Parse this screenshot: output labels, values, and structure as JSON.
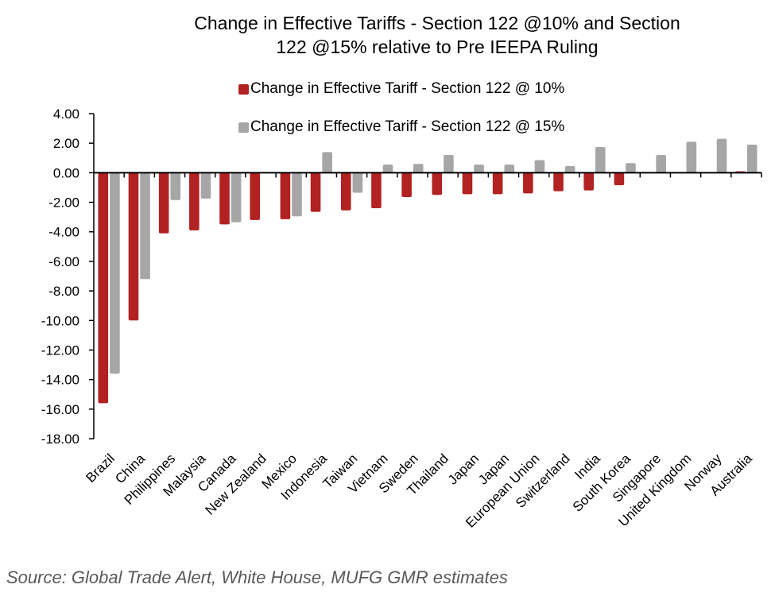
{
  "chart_data": {
    "type": "bar",
    "title": "Change in Effective Tariffs - Section 122 @10% and Section 122 @15% relative to Pre IEEPA Ruling",
    "title_lines": [
      "Change in Effective Tariffs - Section 122 @10% and Section",
      "122 @15% relative to Pre IEEPA Ruling"
    ],
    "xlabel": "",
    "ylabel": "",
    "ylim": [
      -18,
      4
    ],
    "yticks": [
      4,
      2,
      0,
      -2,
      -4,
      -6,
      -8,
      -10,
      -12,
      -14,
      -16,
      -18
    ],
    "ytick_labels": [
      "4.00",
      "2.00",
      "0.00",
      "-2.00",
      "-4.00",
      "-6.00",
      "-8.00",
      "-10.00",
      "-12.00",
      "-14.00",
      "-16.00",
      "-18.00"
    ],
    "grid": false,
    "legend_position": "top-center",
    "categories": [
      "Brazil",
      "China",
      "Philippines",
      "Malaysia",
      "Canada",
      "New Zealand",
      "Mexico",
      "Indonesia",
      "Taiwan",
      "Vietnam",
      "Sweden",
      "Thailand",
      "Japan",
      "Japan",
      "European Union",
      "Switzerland",
      "India",
      "South Korea",
      "Singapore",
      "United Kingdom",
      "Norway",
      "Australia"
    ],
    "series": [
      {
        "name": "Change in Effective Tariff - Section 122 @ 10%",
        "color": "#b22222",
        "values": [
          -15.6,
          -10.0,
          -4.1,
          -3.9,
          -3.5,
          -3.2,
          -3.15,
          -2.65,
          -2.55,
          -2.4,
          -1.65,
          -1.5,
          -1.45,
          -1.45,
          -1.4,
          -1.25,
          -1.2,
          -0.85,
          0.0,
          0.0,
          0.0,
          0.1
        ]
      },
      {
        "name": "Change in Effective Tariff - Section 122 @ 15%",
        "color": "#a6a6a6",
        "values": [
          -13.6,
          -7.2,
          -1.85,
          -1.75,
          -3.35,
          0.0,
          -2.95,
          1.4,
          -1.35,
          0.55,
          0.6,
          1.2,
          0.55,
          0.55,
          0.85,
          0.45,
          1.75,
          0.65,
          1.2,
          2.1,
          2.3,
          1.9
        ]
      }
    ]
  },
  "source": "Source: Global Trade Alert, White House, MUFG GMR estimates"
}
